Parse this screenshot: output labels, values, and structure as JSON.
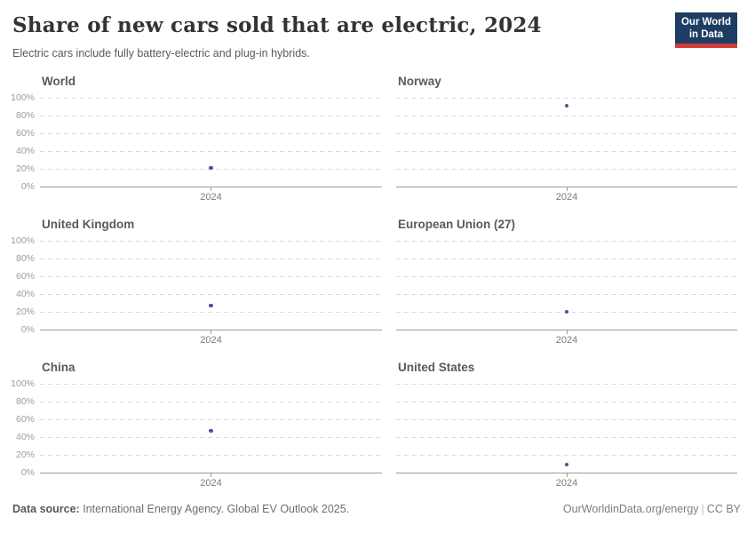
{
  "header": {
    "title": "Share of new cars sold that are electric, 2024",
    "subtitle": "Electric cars include fully battery-electric and plug-in hybrids.",
    "logo": {
      "line1": "Our World",
      "line2": "in Data",
      "bg_color": "#1d3d63",
      "accent_color": "#d13d3d"
    }
  },
  "chart_data": {
    "type": "scatter",
    "title": "Share of new cars sold that are electric, 2024",
    "subtitle": "Electric cars include fully battery-electric and plug-in hybrids.",
    "unit": "%",
    "x": [
      2024
    ],
    "x_tick_label": "2024",
    "y_ticks": [
      "0%",
      "20%",
      "40%",
      "60%",
      "80%",
      "100%"
    ],
    "ylim": [
      0,
      100
    ],
    "grid": true,
    "layout": "2 columns x 3 rows small multiples",
    "point_color": "#415a94",
    "facets": [
      {
        "title": "World",
        "x": 2024,
        "value": 22
      },
      {
        "title": "Norway",
        "x": 2024,
        "value": 92
      },
      {
        "title": "United Kingdom",
        "x": 2024,
        "value": 28
      },
      {
        "title": "European Union (27)",
        "x": 2024,
        "value": 21
      },
      {
        "title": "China",
        "x": 2024,
        "value": 48
      },
      {
        "title": "United States",
        "x": 2024,
        "value": 10
      }
    ]
  },
  "footer": {
    "source_label": "Data source:",
    "source_text": " International Energy Agency. Global EV Outlook 2025.",
    "site_link": "OurWorldinData.org/energy",
    "divider": "|",
    "license": "CC BY"
  }
}
